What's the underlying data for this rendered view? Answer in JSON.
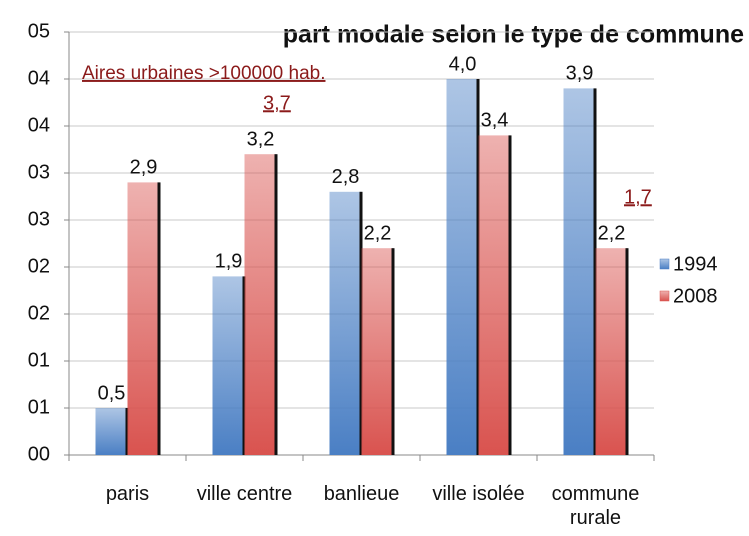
{
  "chart_data": {
    "type": "bar",
    "title": "part modale selon le type de commune",
    "categories": [
      "paris",
      "ville centre",
      "banlieue",
      "ville isolée",
      "commune rurale"
    ],
    "series": [
      {
        "name": "1994",
        "color": "#4a7fc4",
        "values": [
          0.5,
          1.9,
          2.8,
          4.0,
          3.9
        ],
        "value_labels": [
          "0,5",
          "1,9",
          "2,8",
          "4,0",
          "3,9"
        ]
      },
      {
        "name": "2008",
        "color": "#d9534f",
        "values": [
          2.9,
          3.2,
          2.2,
          3.4,
          2.2
        ],
        "value_labels": [
          "2,9",
          "3,2",
          "2,2",
          "3,4",
          "2,2"
        ]
      }
    ],
    "annotations": [
      {
        "text": "Aires urbaines >100000 hab."
      },
      {
        "text": "3,7"
      },
      {
        "text": "1,7"
      }
    ],
    "ylim": [
      0,
      4.5
    ],
    "yticks": [
      {
        "value": 0,
        "label": "00"
      },
      {
        "value": 0.5,
        "label": "01"
      },
      {
        "value": 1,
        "label": "01"
      },
      {
        "value": 1.5,
        "label": "02"
      },
      {
        "value": 2,
        "label": "02"
      },
      {
        "value": 2.5,
        "label": "03"
      },
      {
        "value": 3,
        "label": "03"
      },
      {
        "value": 3.5,
        "label": "04"
      },
      {
        "value": 4,
        "label": "04"
      },
      {
        "value": 4.5,
        "label": "05"
      }
    ],
    "grid": true,
    "legend": "right"
  }
}
